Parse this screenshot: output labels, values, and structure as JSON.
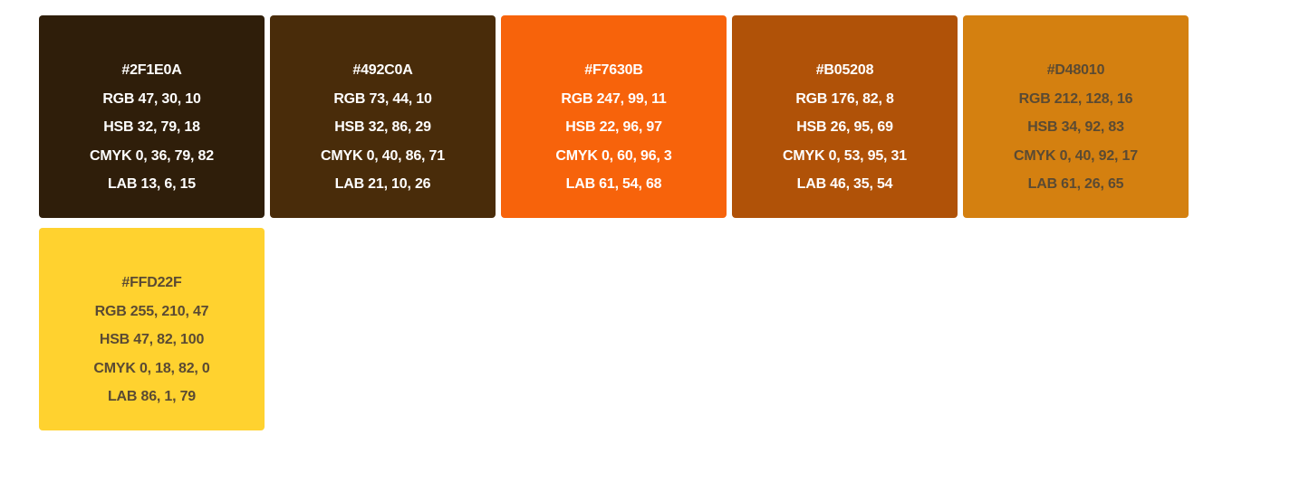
{
  "swatches": [
    {
      "color": "#2F1E0A",
      "text_color": "#ffffff",
      "hex": "#2F1E0A",
      "rgb": "RGB 47, 30, 10",
      "hsb": "HSB 32, 79, 18",
      "cmyk": "CMYK 0, 36, 79, 82",
      "lab": "LAB 13, 6, 15"
    },
    {
      "color": "#492C0A",
      "text_color": "#ffffff",
      "hex": "#492C0A",
      "rgb": "RGB 73, 44, 10",
      "hsb": "HSB 32, 86, 29",
      "cmyk": "CMYK 0, 40, 86, 71",
      "lab": "LAB 21, 10, 26"
    },
    {
      "color": "#F7630B",
      "text_color": "#ffffff",
      "hex": "#F7630B",
      "rgb": "RGB 247, 99, 11",
      "hsb": "HSB 22, 96, 97",
      "cmyk": "CMYK 0, 60, 96, 3",
      "lab": "LAB 61, 54, 68"
    },
    {
      "color": "#B05208",
      "text_color": "#ffffff",
      "hex": "#B05208",
      "rgb": "RGB 176, 82, 8",
      "hsb": "HSB 26, 95, 69",
      "cmyk": "CMYK 0, 53, 95, 31",
      "lab": "LAB 46, 35, 54"
    },
    {
      "color": "#D48010",
      "text_color": "#5a4a33",
      "hex": "#D48010",
      "rgb": "RGB 212, 128, 16",
      "hsb": "HSB 34, 92, 83",
      "cmyk": "CMYK 0, 40, 92, 17",
      "lab": "LAB 61, 26, 65"
    },
    {
      "color": "#FFD22F",
      "text_color": "#5a4a33",
      "hex": "#FFD22F",
      "rgb": "RGB 255, 210, 47",
      "hsb": "HSB 47, 82, 100",
      "cmyk": "CMYK 0, 18, 82, 0",
      "lab": "LAB 86, 1, 79"
    }
  ]
}
